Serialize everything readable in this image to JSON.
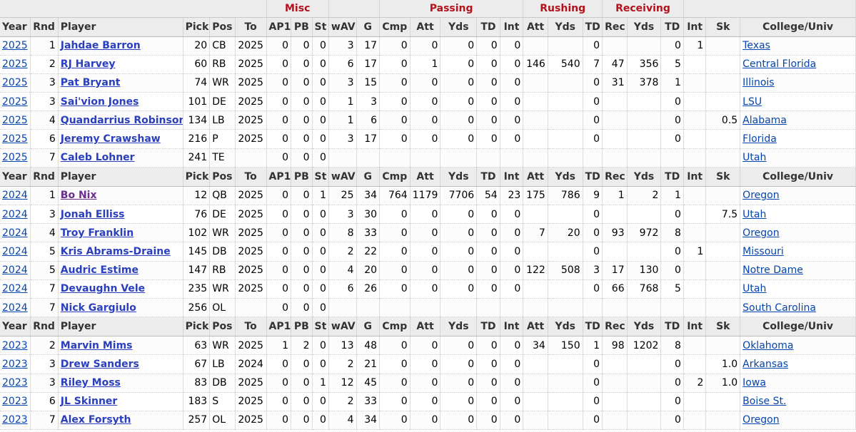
{
  "group_headers": {
    "misc": "Misc",
    "passing": "Passing",
    "rushing": "Rushing",
    "receiving": "Receiving"
  },
  "columns": [
    "Year",
    "Rnd",
    "Player",
    "Pick",
    "Pos",
    "To",
    "AP1",
    "PB",
    "St",
    "wAV",
    "G",
    "Cmp",
    "Att",
    "Yds",
    "TD",
    "Int",
    "Att",
    "Yds",
    "TD",
    "Rec",
    "Yds",
    "TD",
    "Int",
    "Sk",
    "College/Univ"
  ],
  "sections": [
    {
      "rows": [
        [
          "2025",
          "1",
          "Jahdae Barron",
          "20",
          "CB",
          "2025",
          "0",
          "0",
          "0",
          "3",
          "17",
          "0",
          "0",
          "0",
          "0",
          "0",
          "",
          "",
          "0",
          "",
          "",
          "0",
          "1",
          "",
          "Texas"
        ],
        [
          "2025",
          "2",
          "RJ Harvey",
          "60",
          "RB",
          "2025",
          "0",
          "0",
          "0",
          "6",
          "17",
          "0",
          "1",
          "0",
          "0",
          "0",
          "146",
          "540",
          "7",
          "47",
          "356",
          "5",
          "",
          "",
          "Central Florida"
        ],
        [
          "2025",
          "3",
          "Pat Bryant",
          "74",
          "WR",
          "2025",
          "0",
          "0",
          "0",
          "3",
          "15",
          "0",
          "0",
          "0",
          "0",
          "0",
          "",
          "",
          "0",
          "31",
          "378",
          "1",
          "",
          "",
          "Illinois"
        ],
        [
          "2025",
          "3",
          "Sai'vion Jones",
          "101",
          "DE",
          "2025",
          "0",
          "0",
          "0",
          "1",
          "3",
          "0",
          "0",
          "0",
          "0",
          "0",
          "",
          "",
          "0",
          "",
          "",
          "0",
          "",
          "",
          "LSU"
        ],
        [
          "2025",
          "4",
          "Quandarrius Robinson",
          "134",
          "LB",
          "2025",
          "0",
          "0",
          "0",
          "1",
          "6",
          "0",
          "0",
          "0",
          "0",
          "0",
          "",
          "",
          "0",
          "",
          "",
          "0",
          "",
          "0.5",
          "Alabama"
        ],
        [
          "2025",
          "6",
          "Jeremy Crawshaw",
          "216",
          "P",
          "2025",
          "0",
          "0",
          "0",
          "3",
          "17",
          "0",
          "0",
          "0",
          "0",
          "0",
          "",
          "",
          "0",
          "",
          "",
          "0",
          "",
          "",
          "Florida"
        ],
        [
          "2025",
          "7",
          "Caleb Lohner",
          "241",
          "TE",
          "",
          "0",
          "0",
          "0",
          "",
          "",
          "",
          "",
          "",
          "",
          "",
          "",
          "",
          "",
          "",
          "",
          "",
          "",
          "",
          "Utah"
        ]
      ]
    },
    {
      "rows": [
        [
          "2024",
          "1",
          "Bo Nix",
          "12",
          "QB",
          "2025",
          "0",
          "0",
          "1",
          "25",
          "34",
          "764",
          "1179",
          "7706",
          "54",
          "23",
          "175",
          "786",
          "9",
          "1",
          "2",
          "1",
          "",
          "",
          "Oregon"
        ],
        [
          "2024",
          "3",
          "Jonah Elliss",
          "76",
          "DE",
          "2025",
          "0",
          "0",
          "0",
          "3",
          "30",
          "0",
          "0",
          "0",
          "0",
          "0",
          "",
          "",
          "0",
          "",
          "",
          "0",
          "",
          "7.5",
          "Utah"
        ],
        [
          "2024",
          "4",
          "Troy Franklin",
          "102",
          "WR",
          "2025",
          "0",
          "0",
          "0",
          "8",
          "33",
          "0",
          "0",
          "0",
          "0",
          "0",
          "7",
          "20",
          "0",
          "93",
          "972",
          "8",
          "",
          "",
          "Oregon"
        ],
        [
          "2024",
          "5",
          "Kris Abrams-Draine",
          "145",
          "DB",
          "2025",
          "0",
          "0",
          "0",
          "2",
          "22",
          "0",
          "0",
          "0",
          "0",
          "0",
          "",
          "",
          "0",
          "",
          "",
          "0",
          "1",
          "",
          "Missouri"
        ],
        [
          "2024",
          "5",
          "Audric Estime",
          "147",
          "RB",
          "2025",
          "0",
          "0",
          "0",
          "4",
          "20",
          "0",
          "0",
          "0",
          "0",
          "0",
          "122",
          "508",
          "3",
          "17",
          "130",
          "0",
          "",
          "",
          "Notre Dame"
        ],
        [
          "2024",
          "7",
          "Devaughn Vele",
          "235",
          "WR",
          "2025",
          "0",
          "0",
          "0",
          "6",
          "26",
          "0",
          "0",
          "0",
          "0",
          "0",
          "",
          "",
          "0",
          "66",
          "768",
          "5",
          "",
          "",
          "Utah"
        ],
        [
          "2024",
          "7",
          "Nick Gargiulo",
          "256",
          "OL",
          "",
          "0",
          "0",
          "0",
          "",
          "",
          "",
          "",
          "",
          "",
          "",
          "",
          "",
          "",
          "",
          "",
          "",
          "",
          "",
          "South Carolina"
        ]
      ]
    },
    {
      "rows": [
        [
          "2023",
          "2",
          "Marvin Mims",
          "63",
          "WR",
          "2025",
          "1",
          "2",
          "0",
          "13",
          "48",
          "0",
          "0",
          "0",
          "0",
          "0",
          "34",
          "150",
          "1",
          "98",
          "1202",
          "8",
          "",
          "",
          "Oklahoma"
        ],
        [
          "2023",
          "3",
          "Drew Sanders",
          "67",
          "LB",
          "2024",
          "0",
          "0",
          "0",
          "2",
          "21",
          "0",
          "0",
          "0",
          "0",
          "0",
          "",
          "",
          "0",
          "",
          "",
          "0",
          "",
          "1.0",
          "Arkansas"
        ],
        [
          "2023",
          "3",
          "Riley Moss",
          "83",
          "DB",
          "2025",
          "0",
          "0",
          "1",
          "12",
          "45",
          "0",
          "0",
          "0",
          "0",
          "0",
          "",
          "",
          "0",
          "",
          "",
          "0",
          "2",
          "1.0",
          "Iowa"
        ],
        [
          "2023",
          "6",
          "JL Skinner",
          "183",
          "S",
          "2025",
          "0",
          "0",
          "0",
          "2",
          "33",
          "0",
          "0",
          "0",
          "0",
          "0",
          "",
          "",
          "0",
          "",
          "",
          "0",
          "",
          "",
          "Boise St."
        ],
        [
          "2023",
          "7",
          "Alex Forsyth",
          "257",
          "OL",
          "2025",
          "0",
          "0",
          "0",
          "4",
          "34",
          "0",
          "0",
          "0",
          "0",
          "0",
          "",
          "",
          "0",
          "",
          "",
          "0",
          "",
          "",
          "Oregon"
        ]
      ]
    }
  ],
  "colors": {
    "group_header": "#b5121b",
    "link": "#0645ad",
    "visited_link": "#6b2c91",
    "header_bg": "#ececec"
  }
}
